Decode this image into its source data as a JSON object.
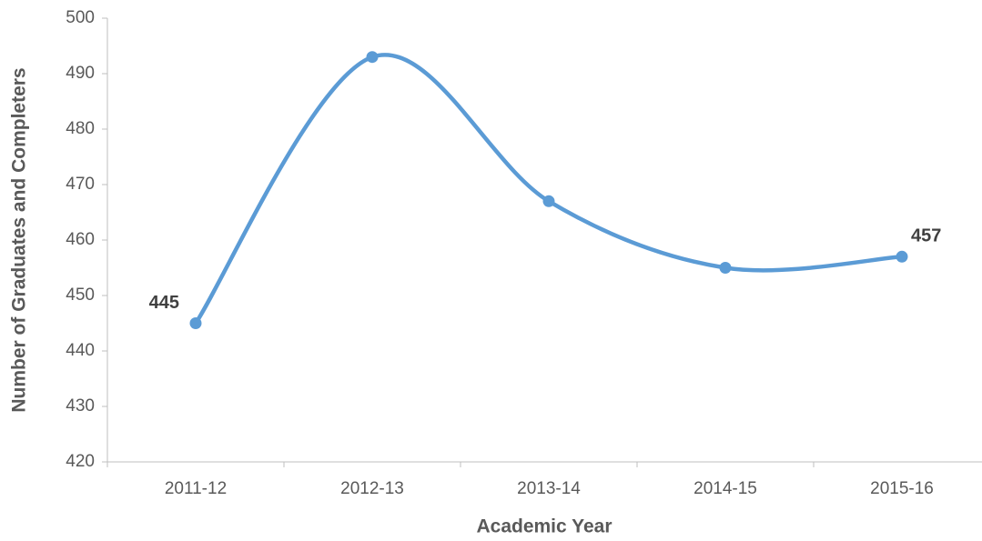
{
  "chart_data": {
    "type": "line",
    "xlabel": "Academic Year",
    "ylabel": "Number of Graduates and Completers",
    "categories": [
      "2011-12",
      "2012-13",
      "2013-14",
      "2014-15",
      "2015-16"
    ],
    "values": [
      445,
      493,
      467,
      455,
      457
    ],
    "value_labels": [
      "445",
      null,
      null,
      null,
      "457"
    ],
    "color": "#5b9bd5",
    "smooth": true,
    "ylim": [
      420,
      500
    ],
    "yticks": [
      420,
      430,
      440,
      450,
      460,
      470,
      480,
      490,
      500
    ],
    "grid": false
  }
}
